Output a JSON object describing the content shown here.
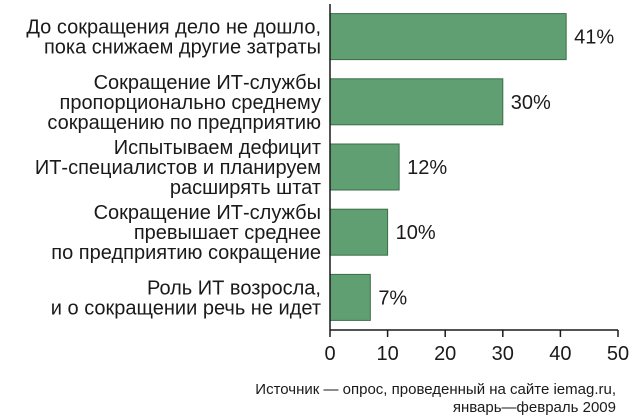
{
  "chart_data": {
    "type": "bar",
    "orientation": "horizontal",
    "categories": [
      [
        "До сокращения дело не дошло,",
        "пока снижаем  другие затраты"
      ],
      [
        "Сокращение ИТ-службы",
        "пропорционально среднему",
        "сокращению по предприятию"
      ],
      [
        "Испытываем дефицит",
        "ИТ-специалистов и планируем",
        "расширять штат"
      ],
      [
        "Сокращение ИТ-службы",
        "превышает среднее",
        "по предприятию сокращение"
      ],
      [
        "Роль ИТ возросла,",
        "и о сокращении речь не идет"
      ]
    ],
    "values": [
      41,
      30,
      12,
      10,
      7
    ],
    "value_labels": [
      "41%",
      "30%",
      "12%",
      "10%",
      "7%"
    ],
    "xlim": [
      0,
      50
    ],
    "xticks": [
      0,
      10,
      20,
      30,
      40,
      50
    ],
    "grid": false,
    "bar_color": "#5f9f72",
    "bar_stroke": "#3a6e4a",
    "source": [
      "Источник — опрос, проведенный на сайте iemag.ru,",
      "январь—февраль 2009"
    ]
  }
}
